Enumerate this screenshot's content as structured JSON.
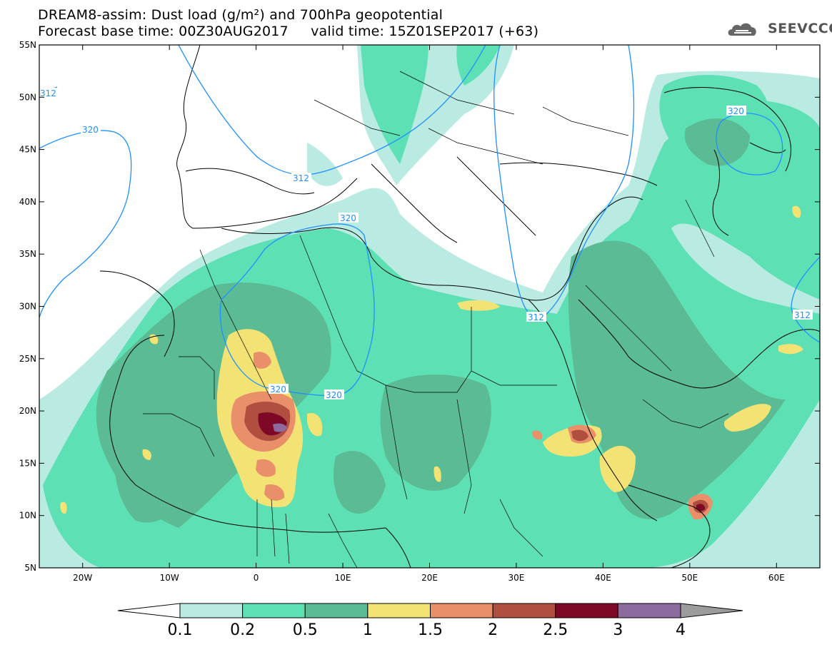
{
  "title": {
    "line1": "DREAM8-assim: Dust load (g/m²) and 700hPa geopotential",
    "line2": "Forecast base time: 00Z30AUG2017     valid time: 15Z01SEP2017 (+63)"
  },
  "logo": {
    "icon": "cloud-icon",
    "text": "SEEVCCC"
  },
  "map": {
    "lon_range": [
      -25,
      65
    ],
    "lat_range": [
      5,
      55
    ],
    "lat_ticks": [
      "55N",
      "50N",
      "45N",
      "40N",
      "35N",
      "30N",
      "25N",
      "20N",
      "15N",
      "10N",
      "5N"
    ],
    "lon_ticks": [
      "20W",
      "10W",
      "0",
      "10E",
      "20E",
      "30E",
      "40E",
      "50E",
      "60E"
    ],
    "contour_labels": [
      "312",
      "320",
      "312",
      "320",
      "320",
      "320",
      "320",
      "312",
      "312",
      "320"
    ]
  },
  "colorbar": {
    "levels": [
      "0.1",
      "0.2",
      "0.5",
      "1",
      "1.5",
      "2",
      "2.5",
      "3",
      "4"
    ],
    "colors": [
      "#ffffff",
      "#b9ebe2",
      "#5ee0b5",
      "#5abb94",
      "#f2e374",
      "#e9906a",
      "#b04e40",
      "#7d0927",
      "#8e6b9f",
      "#9c9c9c"
    ]
  }
}
